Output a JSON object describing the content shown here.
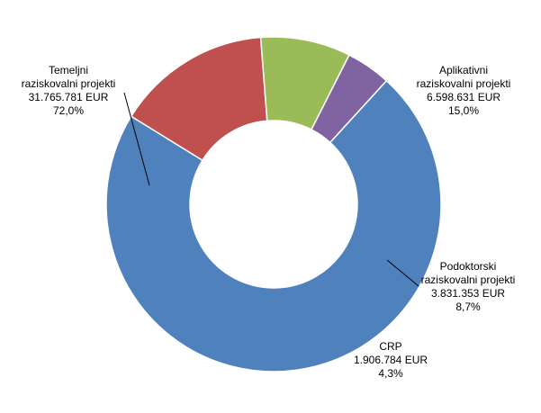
{
  "chart_data": {
    "type": "pie",
    "variant": "donut",
    "title": "",
    "unit": "EUR",
    "slices": [
      {
        "key": "temeljni",
        "label_lines": [
          "Temeljni",
          "raziskovalni projekti"
        ],
        "value": 31765781,
        "value_text": "31.765.781 EUR",
        "percent_text": "72,0%",
        "color": "#4F81BD"
      },
      {
        "key": "aplikativni",
        "label_lines": [
          "Aplikativni",
          "raziskovalni projekti"
        ],
        "value": 6598631,
        "value_text": "6.598.631 EUR",
        "percent_text": "15,0%",
        "color": "#C0504D"
      },
      {
        "key": "podoktorski",
        "label_lines": [
          "Podoktorski",
          "raziskovalni projekti"
        ],
        "value": 3831353,
        "value_text": "3.831.353 EUR",
        "percent_text": "8,7%",
        "color": "#9BBB59"
      },
      {
        "key": "crp",
        "label_lines": [
          "CRP"
        ],
        "value": 1906784,
        "value_text": "1.906.784 EUR",
        "percent_text": "4,3%",
        "color": "#8064A2"
      }
    ]
  }
}
